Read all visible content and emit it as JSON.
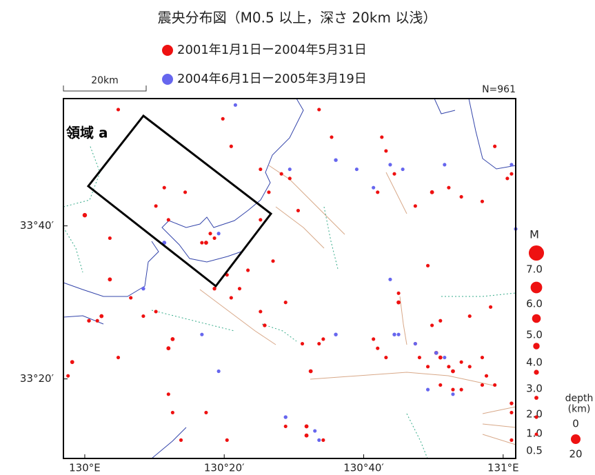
{
  "chart_data": {
    "type": "map",
    "title": "震央分布図（M0.5 以上，深さ 20km 以浅）",
    "scale_bar": "20km",
    "count": "N=961",
    "region_label": "領域 a",
    "xlim": [
      129.949,
      131.03
    ],
    "ylim": [
      33.16,
      33.944
    ],
    "xticks": [
      {
        "value": 130,
        "label": "130°E"
      },
      {
        "value": 130.3333,
        "label": "130°20′"
      },
      {
        "value": 130.6667,
        "label": "130°40′"
      },
      {
        "value": 131,
        "label": "131°E"
      }
    ],
    "yticks": [
      {
        "value": 33.6667,
        "label": "33°40′"
      },
      {
        "value": 33.3333,
        "label": "33°20′"
      }
    ],
    "size_legend": {
      "title": "M",
      "items": [
        {
          "value": 7,
          "label": "7.0"
        },
        {
          "value": 6,
          "label": "6.0"
        },
        {
          "value": 5,
          "label": "5.0"
        },
        {
          "value": 4,
          "label": "4.0"
        },
        {
          "value": 3,
          "label": "3.0"
        },
        {
          "value": 2,
          "label": "2.0"
        },
        {
          "value": 1,
          "label": "1.0"
        },
        {
          "value": 0.5,
          "label": "0.5"
        }
      ]
    },
    "depth_legend": {
      "title": "depth\n(km)",
      "labels": [
        "0",
        "20"
      ]
    },
    "series": [
      {
        "name": "2001年1月1日ー2004年5月31日",
        "color": "#ee1111",
        "points": [
          [
            130.0,
            33.69,
            2.5
          ],
          [
            130.08,
            33.92,
            1
          ],
          [
            130.19,
            33.75,
            1
          ],
          [
            130.24,
            33.74,
            1
          ],
          [
            130.17,
            33.71,
            1
          ],
          [
            130.2,
            33.68,
            1
          ],
          [
            130.06,
            33.64,
            1
          ],
          [
            130.06,
            33.55,
            2
          ],
          [
            130.04,
            33.47,
            2
          ],
          [
            129.97,
            33.37,
            2
          ],
          [
            129.96,
            33.34,
            1
          ],
          [
            130.21,
            33.42,
            2
          ],
          [
            130.2,
            33.4,
            2
          ],
          [
            130.2,
            33.3,
            1
          ],
          [
            130.21,
            33.26,
            1
          ],
          [
            130.29,
            33.63,
            2
          ],
          [
            130.28,
            33.63,
            1
          ],
          [
            130.3,
            33.65,
            1
          ],
          [
            130.31,
            33.64,
            1
          ],
          [
            130.42,
            33.68,
            1
          ],
          [
            130.44,
            33.74,
            1
          ],
          [
            130.42,
            33.79,
            1
          ],
          [
            130.33,
            33.9,
            1
          ],
          [
            130.35,
            33.84,
            1
          ],
          [
            130.47,
            33.78,
            1
          ],
          [
            130.49,
            33.77,
            1
          ],
          [
            130.51,
            33.7,
            1
          ],
          [
            130.56,
            33.92,
            1
          ],
          [
            130.59,
            33.86,
            1
          ],
          [
            130.71,
            33.86,
            1
          ],
          [
            130.72,
            33.83,
            1
          ],
          [
            130.7,
            33.74,
            1
          ],
          [
            130.74,
            33.78,
            1
          ],
          [
            130.79,
            33.71,
            1
          ],
          [
            130.83,
            33.74,
            2
          ],
          [
            130.87,
            33.75,
            1
          ],
          [
            130.9,
            33.73,
            1
          ],
          [
            130.95,
            33.72,
            1
          ],
          [
            130.98,
            33.84,
            1
          ],
          [
            131.01,
            33.77,
            1
          ],
          [
            131.02,
            33.78,
            1
          ],
          [
            130.82,
            33.58,
            1
          ],
          [
            130.75,
            33.52,
            1
          ],
          [
            130.75,
            33.5,
            2
          ],
          [
            130.83,
            33.45,
            1
          ],
          [
            130.85,
            33.46,
            1
          ],
          [
            130.97,
            33.49,
            1
          ],
          [
            130.92,
            33.47,
            1
          ],
          [
            130.69,
            33.42,
            1
          ],
          [
            130.7,
            33.4,
            1
          ],
          [
            130.72,
            33.38,
            1
          ],
          [
            130.79,
            33.41,
            1
          ],
          [
            130.8,
            33.38,
            1
          ],
          [
            130.82,
            33.36,
            1
          ],
          [
            130.84,
            33.39,
            2
          ],
          [
            130.85,
            33.38,
            2
          ],
          [
            130.87,
            33.36,
            1
          ],
          [
            130.88,
            33.35,
            2
          ],
          [
            130.9,
            33.37,
            1
          ],
          [
            130.92,
            33.36,
            1
          ],
          [
            130.95,
            33.38,
            1
          ],
          [
            130.96,
            33.34,
            1
          ],
          [
            130.85,
            33.32,
            1
          ],
          [
            130.88,
            33.31,
            1
          ],
          [
            130.9,
            33.31,
            1
          ],
          [
            130.95,
            33.32,
            1
          ],
          [
            130.98,
            33.32,
            1
          ],
          [
            131.02,
            33.28,
            1.5
          ],
          [
            131.02,
            33.26,
            1
          ],
          [
            131.02,
            33.2,
            1
          ],
          [
            130.54,
            33.35,
            2
          ],
          [
            130.56,
            33.41,
            1
          ],
          [
            130.57,
            33.42,
            1
          ],
          [
            130.52,
            33.41,
            1
          ],
          [
            130.43,
            33.45,
            1.5
          ],
          [
            130.42,
            33.48,
            1
          ],
          [
            130.37,
            33.53,
            1
          ],
          [
            130.35,
            33.51,
            1
          ],
          [
            130.31,
            33.53,
            1.5
          ],
          [
            130.34,
            33.56,
            1
          ],
          [
            130.39,
            33.57,
            1
          ],
          [
            130.45,
            33.59,
            1
          ],
          [
            130.48,
            33.5,
            1
          ],
          [
            130.48,
            33.23,
            1
          ],
          [
            130.53,
            33.23,
            2
          ],
          [
            130.53,
            33.21,
            2
          ],
          [
            130.57,
            33.2,
            1
          ],
          [
            130.29,
            33.26,
            1
          ],
          [
            130.34,
            33.2,
            1
          ],
          [
            130.23,
            33.2,
            1
          ],
          [
            130.14,
            33.47,
            1
          ],
          [
            130.11,
            33.51,
            1
          ],
          [
            130.17,
            33.48,
            1
          ],
          [
            130.01,
            33.46,
            1.5
          ],
          [
            130.03,
            33.46,
            1
          ],
          [
            130.08,
            33.38,
            1
          ]
        ]
      },
      {
        "name": "2004年6月1日ー2005年3月19日",
        "color": "#6666ee",
        "points": [
          [
            130.19,
            33.63,
            2
          ],
          [
            130.14,
            33.53,
            1.5
          ],
          [
            130.36,
            33.93,
            1
          ],
          [
            130.49,
            33.79,
            1
          ],
          [
            130.6,
            33.81,
            1.5
          ],
          [
            130.65,
            33.79,
            1
          ],
          [
            130.69,
            33.75,
            1
          ],
          [
            130.73,
            33.8,
            1
          ],
          [
            130.76,
            33.79,
            1
          ],
          [
            131.03,
            33.66,
            1
          ],
          [
            131.02,
            33.8,
            1
          ],
          [
            130.73,
            33.55,
            1
          ],
          [
            130.74,
            33.43,
            1.5
          ],
          [
            130.75,
            33.43,
            1
          ],
          [
            130.79,
            33.41,
            1
          ],
          [
            130.84,
            33.39,
            1.5
          ],
          [
            130.86,
            33.38,
            1
          ],
          [
            130.88,
            33.3,
            1
          ],
          [
            130.82,
            33.31,
            1
          ],
          [
            130.6,
            33.43,
            1.5
          ],
          [
            130.48,
            33.25,
            1.5
          ],
          [
            130.55,
            33.22,
            1
          ],
          [
            130.56,
            33.2,
            1
          ],
          [
            130.32,
            33.35,
            1
          ],
          [
            130.28,
            33.43,
            1
          ],
          [
            130.32,
            33.65,
            1
          ],
          [
            130.86,
            33.8,
            1
          ]
        ]
      }
    ]
  }
}
